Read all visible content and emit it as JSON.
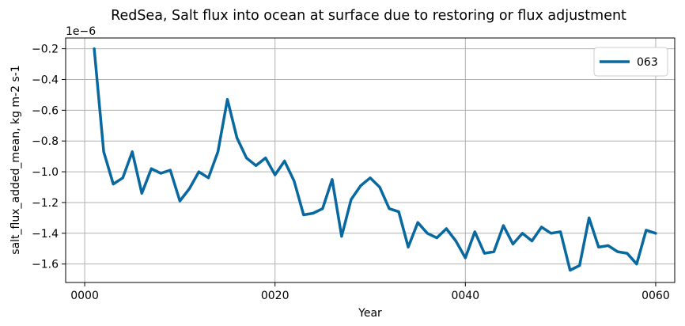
{
  "chart_data": {
    "type": "line",
    "title": "RedSea, Salt flux into ocean at surface due to restoring or flux adjustment",
    "xlabel": "Year",
    "ylabel": "salt_flux_added_mean, kg m-2 s-1",
    "y_scale_label": "1e−6",
    "xlim": [
      -2,
      62
    ],
    "ylim": [
      -1.72,
      -0.13
    ],
    "xticks": [
      0,
      20,
      40,
      60
    ],
    "xtick_labels": [
      "0000",
      "0020",
      "0040",
      "0060"
    ],
    "yticks": [
      -1.6,
      -1.4,
      -1.2,
      -1.0,
      -0.8,
      -0.6,
      -0.4,
      -0.2
    ],
    "ytick_labels": [
      "−1.6",
      "−1.4",
      "−1.2",
      "−1.0",
      "−0.8",
      "−0.6",
      "−0.4",
      "−0.2"
    ],
    "grid": true,
    "legend_position": "top-right",
    "series": [
      {
        "name": "063",
        "color": "#0868a0",
        "x": [
          1,
          2,
          3,
          4,
          5,
          6,
          7,
          8,
          9,
          10,
          11,
          12,
          13,
          14,
          15,
          16,
          17,
          18,
          19,
          20,
          21,
          22,
          23,
          24,
          25,
          26,
          27,
          28,
          29,
          30,
          31,
          32,
          33,
          34,
          35,
          36,
          37,
          38,
          39,
          40,
          41,
          42,
          43,
          44,
          45,
          46,
          47,
          48,
          49,
          50,
          51,
          52,
          53,
          54,
          55,
          56,
          57,
          58,
          59,
          60
        ],
        "values": [
          -0.2,
          -0.87,
          -1.08,
          -1.04,
          -0.87,
          -1.14,
          -0.98,
          -1.01,
          -0.99,
          -1.19,
          -1.11,
          -1.0,
          -1.04,
          -0.87,
          -0.53,
          -0.78,
          -0.91,
          -0.96,
          -0.91,
          -1.02,
          -0.93,
          -1.06,
          -1.28,
          -1.27,
          -1.24,
          -1.05,
          -1.42,
          -1.18,
          -1.09,
          -1.04,
          -1.1,
          -1.24,
          -1.26,
          -1.49,
          -1.33,
          -1.4,
          -1.43,
          -1.37,
          -1.45,
          -1.56,
          -1.39,
          -1.53,
          -1.52,
          -1.35,
          -1.47,
          -1.4,
          -1.45,
          -1.36,
          -1.4,
          -1.39,
          -1.64,
          -1.61,
          -1.3,
          -1.49,
          -1.48,
          -1.52,
          -1.53,
          -1.6,
          -1.38,
          -1.4
        ]
      }
    ]
  }
}
